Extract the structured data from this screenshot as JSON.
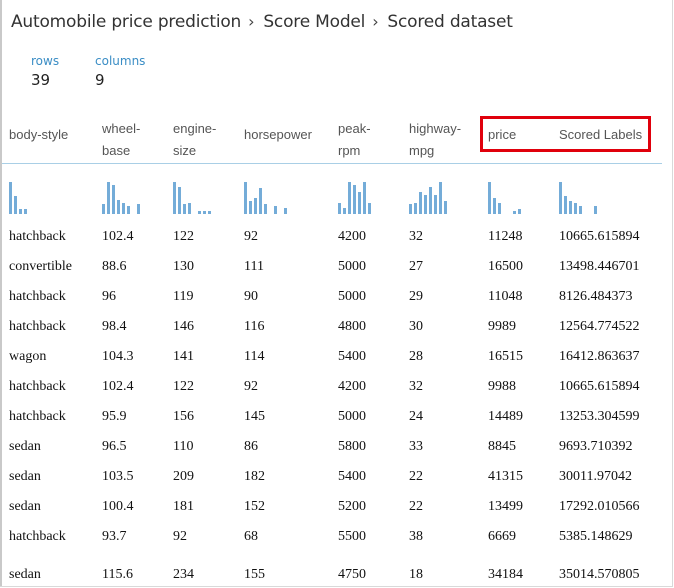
{
  "breadcrumb": {
    "items": [
      "Automobile price prediction",
      "Score Model",
      "Scored dataset"
    ],
    "separator": "›"
  },
  "stats": {
    "rows_label": "rows",
    "rows_value": "39",
    "columns_label": "columns",
    "columns_value": "9"
  },
  "columns": [
    {
      "key": "body_style",
      "label_lines": [
        "body-style"
      ]
    },
    {
      "key": "wheel_base",
      "label_lines": [
        "wheel-",
        "base"
      ]
    },
    {
      "key": "engine_size",
      "label_lines": [
        "engine-",
        "size"
      ]
    },
    {
      "key": "horsepower",
      "label_lines": [
        "horsepower"
      ]
    },
    {
      "key": "peak_rpm",
      "label_lines": [
        "peak-",
        "rpm"
      ]
    },
    {
      "key": "highway_mpg",
      "label_lines": [
        "highway-",
        "mpg"
      ]
    },
    {
      "key": "price",
      "label_lines": [
        "price"
      ]
    },
    {
      "key": "scored_labels",
      "label_lines": [
        "Scored Labels"
      ]
    }
  ],
  "highlighted_columns": [
    "price",
    "Scored Labels"
  ],
  "highlight_color": "#e0000c",
  "accent_color": "#3a8dc5",
  "histogram_color": "#74acd8",
  "histograms": [
    [
      1.0,
      0.55,
      0.15,
      0.15
    ],
    [
      0.3,
      1.0,
      0.9,
      0.45,
      0.35,
      0.25,
      0.0,
      0.3
    ],
    [
      1.0,
      0.85,
      0.3,
      0.35,
      0.0,
      0.1,
      0.1,
      0.1
    ],
    [
      1.0,
      0.4,
      0.5,
      0.8,
      0.3,
      0.0,
      0.25,
      0.0,
      0.2
    ],
    [
      0.35,
      0.2,
      1.0,
      0.9,
      0.7,
      1.0,
      0.35
    ],
    [
      0.3,
      0.35,
      0.7,
      0.6,
      0.85,
      0.6,
      1.0,
      0.4
    ],
    [
      1.0,
      0.5,
      0.35,
      0.0,
      0.0,
      0.1,
      0.15
    ],
    [
      1.0,
      0.55,
      0.4,
      0.35,
      0.25,
      0.0,
      0.0,
      0.25
    ]
  ],
  "rows": [
    [
      "hatchback",
      "102.4",
      "122",
      "92",
      "4200",
      "32",
      "11248",
      "10665.615894"
    ],
    [
      "convertible",
      "88.6",
      "130",
      "111",
      "5000",
      "27",
      "16500",
      "13498.446701"
    ],
    [
      "hatchback",
      "96",
      "119",
      "90",
      "5000",
      "29",
      "11048",
      "8126.484373"
    ],
    [
      "hatchback",
      "98.4",
      "146",
      "116",
      "4800",
      "30",
      "9989",
      "12564.774522"
    ],
    [
      "wagon",
      "104.3",
      "141",
      "114",
      "5400",
      "28",
      "16515",
      "16412.863637"
    ],
    [
      "hatchback",
      "102.4",
      "122",
      "92",
      "4200",
      "32",
      "9988",
      "10665.615894"
    ],
    [
      "hatchback",
      "95.9",
      "156",
      "145",
      "5000",
      "24",
      "14489",
      "13253.304599"
    ],
    [
      "sedan",
      "96.5",
      "110",
      "86",
      "5800",
      "33",
      "8845",
      "9693.710392"
    ],
    [
      "sedan",
      "103.5",
      "209",
      "182",
      "5400",
      "22",
      "41315",
      "30011.97042"
    ],
    [
      "sedan",
      "100.4",
      "181",
      "152",
      "5200",
      "22",
      "13499",
      "17292.010566"
    ],
    [
      "hatchback",
      "93.7",
      "92",
      "68",
      "5500",
      "38",
      "6669",
      "5385.148629"
    ],
    [
      "sedan",
      "115.6",
      "234",
      "155",
      "4750",
      "18",
      "34184",
      "35014.570805"
    ]
  ]
}
